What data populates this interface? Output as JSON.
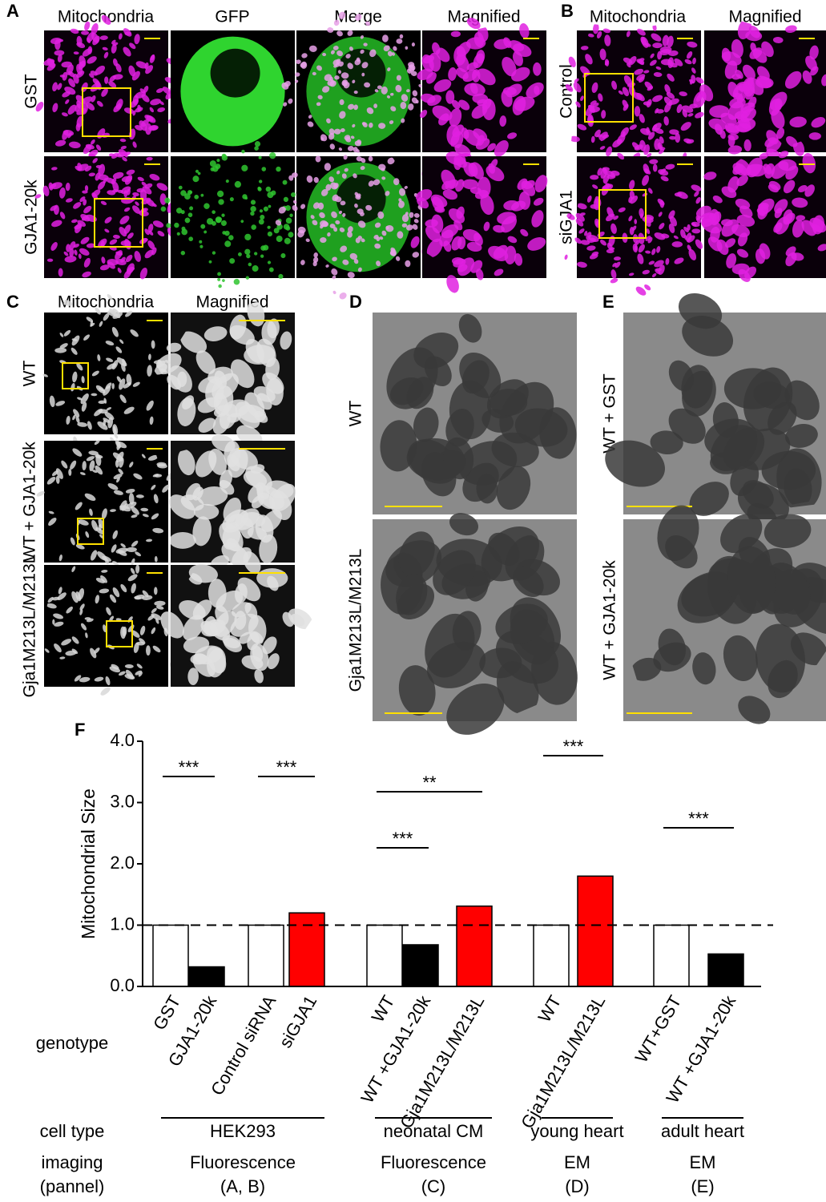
{
  "panels": {
    "A": {
      "letter": "A",
      "columns": [
        "Mitochondria",
        "GFP",
        "Merge",
        "Magnified"
      ],
      "rows": [
        "GST",
        "GJA1-20k"
      ]
    },
    "B": {
      "letter": "B",
      "columns": [
        "Mitochondria",
        "Magnified"
      ],
      "rows": [
        "Control",
        "siGJA1"
      ]
    },
    "C": {
      "letter": "C",
      "columns": [
        "Mitochondria",
        "Magnified"
      ],
      "rows": [
        "WT",
        "WT + GJA1-20k",
        "Gja1M213L/M213L"
      ]
    },
    "D": {
      "letter": "D",
      "rows": [
        "WT",
        "Gja1M213L/M213L"
      ]
    },
    "E": {
      "letter": "E",
      "rows": [
        "WT + GST",
        "WT + GJA1-20k"
      ]
    }
  },
  "chart_data": {
    "type": "bar",
    "letter": "F",
    "y_label": "Mitochondrial Size",
    "x_label": "genotype",
    "categories": [
      "GST",
      "GJA1-20k",
      "Control siRNA",
      "siGJA1",
      "WT",
      "WT +GJA1-20k",
      "Gja1M213L/M213L",
      "WT",
      "Gja1M213L/M213L",
      "WT+GST",
      "WT +GJA1-20k"
    ],
    "values": [
      1.0,
      0.32,
      1.0,
      1.2,
      1.0,
      0.68,
      1.31,
      1.0,
      1.8,
      1.0,
      0.53
    ],
    "colors": [
      "#ffffff",
      "#000000",
      "#ffffff",
      "#ff0000",
      "#ffffff",
      "#000000",
      "#ff0000",
      "#ffffff",
      "#ff0000",
      "#ffffff",
      "#000000"
    ],
    "ylim": [
      0,
      4
    ],
    "yticks": [
      {
        "value": 0,
        "label": "0.0"
      },
      {
        "value": 1,
        "label": "1.0"
      },
      {
        "value": 2,
        "label": "2.0"
      },
      {
        "value": 3,
        "label": "3.0"
      },
      {
        "value": 4,
        "label": "4.0"
      }
    ],
    "reference_line": 1,
    "significance": [
      {
        "from": 0,
        "to": 1,
        "label": "***"
      },
      {
        "from": 2,
        "to": 3,
        "label": "***"
      },
      {
        "from": 4,
        "to": 5,
        "label": "***"
      },
      {
        "from": 4,
        "to": 6,
        "label": "**"
      },
      {
        "from": 7,
        "to": 8,
        "label": "***"
      },
      {
        "from": 9,
        "to": 10,
        "label": "***"
      }
    ],
    "group_rows": {
      "cell_type_label": "cell type",
      "imaging_label": "imaging",
      "panel_label": "(pannel)",
      "groups": [
        {
          "from": 0,
          "to": 3,
          "cell_type": "HEK293",
          "imaging": "Fluorescence",
          "panel": "(A, B)"
        },
        {
          "from": 4,
          "to": 6,
          "cell_type": "neonatal CM",
          "imaging": "Fluorescence",
          "panel": "(C)"
        },
        {
          "from": 7,
          "to": 8,
          "cell_type": "young heart",
          "imaging": "EM",
          "panel": "(D)"
        },
        {
          "from": 9,
          "to": 10,
          "cell_type": "adult heart",
          "imaging": "EM",
          "panel": "(E)"
        }
      ]
    }
  }
}
